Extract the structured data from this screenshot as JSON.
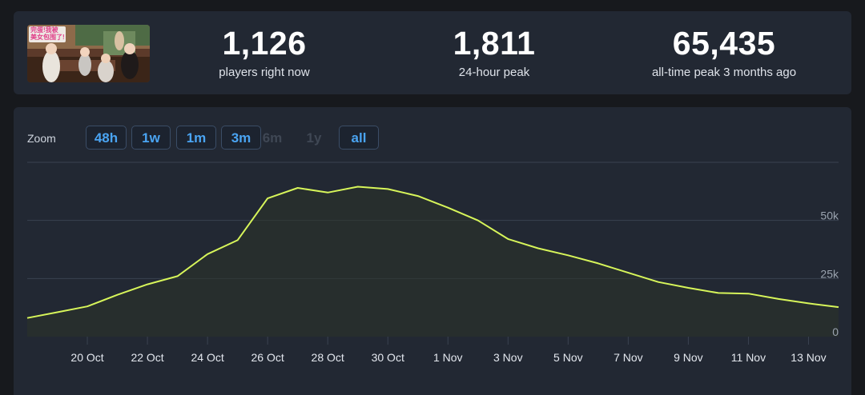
{
  "stats": [
    {
      "value": "1,126",
      "label": "players right now"
    },
    {
      "value": "1,811",
      "label": "24-hour peak"
    },
    {
      "value": "65,435",
      "label": "all-time peak 3 months ago"
    }
  ],
  "thumbnail": {
    "caption_lines": [
      "完蛋!我被",
      "美女包围了!"
    ]
  },
  "zoom": {
    "label": "Zoom",
    "buttons": [
      {
        "label": "48h",
        "enabled": true
      },
      {
        "label": "1w",
        "enabled": true
      },
      {
        "label": "1m",
        "enabled": true
      },
      {
        "label": "3m",
        "enabled": true
      },
      {
        "label": "6m",
        "enabled": false
      },
      {
        "label": "1y",
        "enabled": false
      },
      {
        "label": "all",
        "enabled": true
      }
    ]
  },
  "colors": {
    "line": "#d7f55a",
    "area": "#2b3328",
    "grid": "#3a4250",
    "accent": "#4aa4f2",
    "background": "#222833"
  },
  "chart_data": {
    "type": "area",
    "x": [
      "18 Oct",
      "19 Oct",
      "20 Oct",
      "21 Oct",
      "22 Oct",
      "23 Oct",
      "24 Oct",
      "25 Oct",
      "26 Oct",
      "27 Oct",
      "28 Oct",
      "29 Oct",
      "30 Oct",
      "31 Oct",
      "1 Nov",
      "2 Nov",
      "3 Nov",
      "4 Nov",
      "5 Nov",
      "6 Nov",
      "7 Nov",
      "8 Nov",
      "9 Nov",
      "10 Nov",
      "11 Nov",
      "12 Nov",
      "13 Nov",
      "14 Nov"
    ],
    "values": [
      8000,
      10500,
      13000,
      18000,
      22500,
      26000,
      35500,
      41500,
      59500,
      64000,
      62000,
      64500,
      63500,
      60500,
      55500,
      50000,
      42000,
      38000,
      35000,
      31500,
      27500,
      23500,
      21000,
      18800,
      18500,
      16200,
      14300,
      12700
    ],
    "xtick_labels": [
      "20 Oct",
      "22 Oct",
      "24 Oct",
      "26 Oct",
      "28 Oct",
      "30 Oct",
      "1 Nov",
      "3 Nov",
      "5 Nov",
      "7 Nov",
      "9 Nov",
      "11 Nov",
      "13 Nov"
    ],
    "ytick_labels": [
      "0",
      "25k",
      "50k"
    ],
    "yticks": [
      0,
      25000,
      50000
    ],
    "ylim": [
      0,
      75000
    ],
    "grid": true,
    "legend": "none"
  }
}
